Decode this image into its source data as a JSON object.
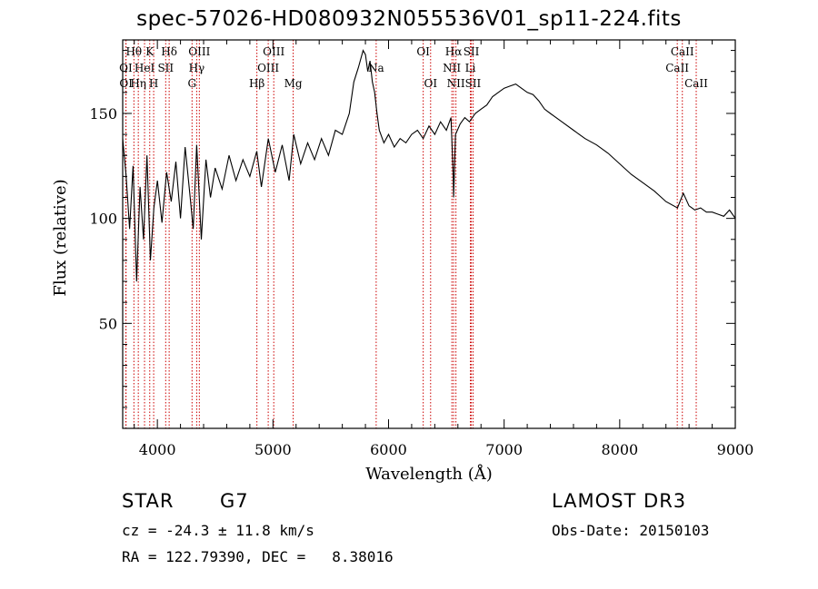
{
  "page": {
    "title": "spec-57026-HD080932N055536V01_sp11-224.fits"
  },
  "info": {
    "class": "STAR",
    "subclass": "G7",
    "cz": "cz = -24.3 ± 11.8 km/s",
    "radec": "RA = 122.79390, DEC =   8.38016",
    "survey": "LAMOST DR3",
    "obsdate": "Obs-Date: 20150103"
  },
  "chart_data": {
    "type": "line",
    "title": "spec-57026-HD080932N055536V01_sp11-224.fits",
    "xlabel": "Wavelength (Å)",
    "ylabel": "Flux (relative)",
    "xlim": [
      3700,
      9000
    ],
    "ylim": [
      0,
      185
    ],
    "xticks": [
      4000,
      5000,
      6000,
      7000,
      8000,
      9000
    ],
    "yticks": [
      50,
      100,
      150
    ],
    "series": [
      {
        "name": "flux",
        "color": "#000000",
        "x": [
          3700,
          3730,
          3760,
          3790,
          3820,
          3850,
          3880,
          3910,
          3940,
          3970,
          4000,
          4040,
          4080,
          4120,
          4160,
          4200,
          4240,
          4280,
          4310,
          4340,
          4380,
          4420,
          4460,
          4500,
          4560,
          4620,
          4680,
          4740,
          4800,
          4860,
          4900,
          4960,
          5020,
          5080,
          5140,
          5180,
          5240,
          5300,
          5360,
          5420,
          5480,
          5540,
          5600,
          5660,
          5700,
          5740,
          5780,
          5800,
          5820,
          5840,
          5860,
          5880,
          5900,
          5920,
          5960,
          6000,
          6050,
          6100,
          6150,
          6200,
          6250,
          6300,
          6350,
          6400,
          6450,
          6500,
          6540,
          6560,
          6563,
          6580,
          6620,
          6660,
          6700,
          6750,
          6800,
          6850,
          6900,
          6950,
          7000,
          7050,
          7100,
          7150,
          7200,
          7250,
          7300,
          7350,
          7400,
          7500,
          7600,
          7700,
          7800,
          7900,
          8000,
          8100,
          8200,
          8300,
          8400,
          8500,
          8550,
          8600,
          8650,
          8700,
          8750,
          8800,
          8850,
          8900,
          8950,
          9000
        ],
        "y": [
          138,
          120,
          95,
          125,
          70,
          115,
          90,
          130,
          80,
          105,
          118,
          98,
          122,
          108,
          127,
          100,
          134,
          112,
          95,
          135,
          90,
          128,
          110,
          124,
          114,
          130,
          118,
          128,
          120,
          132,
          115,
          138,
          122,
          135,
          118,
          140,
          126,
          136,
          128,
          138,
          130,
          142,
          140,
          150,
          165,
          172,
          180,
          178,
          170,
          175,
          165,
          160,
          150,
          142,
          136,
          140,
          134,
          138,
          136,
          140,
          142,
          138,
          144,
          140,
          146,
          142,
          148,
          120,
          110,
          140,
          145,
          148,
          146,
          150,
          152,
          154,
          158,
          160,
          162,
          163,
          164,
          162,
          160,
          159,
          156,
          152,
          150,
          146,
          142,
          138,
          135,
          131,
          126,
          121,
          117,
          113,
          108,
          105,
          112,
          106,
          104,
          105,
          103,
          103,
          102,
          101,
          104,
          100
        ]
      }
    ],
    "line_color": "#000000",
    "marker_color": "#cc0000",
    "lines": [
      {
        "label": "Hθ",
        "wl": 3797,
        "row": 0
      },
      {
        "label": "OI",
        "wl": 3727,
        "row": 1
      },
      {
        "label": "OI",
        "wl": 3729,
        "row": 2
      },
      {
        "label": "Hη",
        "wl": 3835,
        "row": 2
      },
      {
        "label": "HeI",
        "wl": 3889,
        "row": 1
      },
      {
        "label": "K",
        "wl": 3934,
        "row": 0
      },
      {
        "label": "H",
        "wl": 3968,
        "row": 2
      },
      {
        "label": "SII",
        "wl": 4072,
        "row": 1
      },
      {
        "label": "Hδ",
        "wl": 4102,
        "row": 0
      },
      {
        "label": "OIII",
        "wl": 4363,
        "row": 0
      },
      {
        "label": "Hγ",
        "wl": 4340,
        "row": 1
      },
      {
        "label": "G",
        "wl": 4300,
        "row": 2
      },
      {
        "label": "Hβ",
        "wl": 4861,
        "row": 2
      },
      {
        "label": "OIII",
        "wl": 5007,
        "row": 0
      },
      {
        "label": "OIII",
        "wl": 4959,
        "row": 1
      },
      {
        "label": "Mg",
        "wl": 5175,
        "row": 2
      },
      {
        "label": "Na",
        "wl": 5893,
        "row": 1
      },
      {
        "label": "OI",
        "wl": 6300,
        "row": 0
      },
      {
        "label": "OI",
        "wl": 6364,
        "row": 2
      },
      {
        "label": "Hα",
        "wl": 6563,
        "row": 0
      },
      {
        "label": "NII",
        "wl": 6548,
        "row": 1
      },
      {
        "label": "NII",
        "wl": 6583,
        "row": 2
      },
      {
        "label": "SII",
        "wl": 6716,
        "row": 0
      },
      {
        "label": "Li",
        "wl": 6708,
        "row": 1
      },
      {
        "label": "SII",
        "wl": 6731,
        "row": 2
      },
      {
        "label": "CaII",
        "wl": 8542,
        "row": 0
      },
      {
        "label": "CaII",
        "wl": 8498,
        "row": 1
      },
      {
        "label": "CaII",
        "wl": 8662,
        "row": 2
      }
    ]
  }
}
